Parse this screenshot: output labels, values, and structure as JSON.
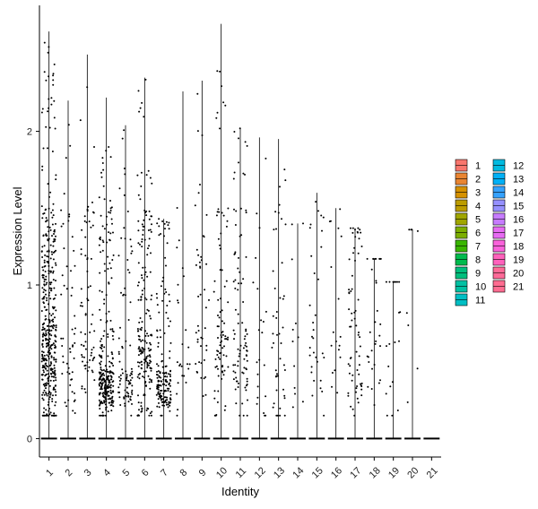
{
  "chart_data": {
    "type": "violin-jitter",
    "xlabel": "Identity",
    "ylabel": "Expression Level",
    "categories": [
      "1",
      "2",
      "3",
      "4",
      "5",
      "6",
      "7",
      "8",
      "9",
      "10",
      "11",
      "12",
      "13",
      "14",
      "15",
      "16",
      "17",
      "18",
      "19",
      "20",
      "21"
    ],
    "ylim": [
      -0.12,
      2.82
    ],
    "yticks": [
      0,
      1,
      2
    ],
    "grid": false,
    "legend_position": "right",
    "legend_columns": [
      [
        "1",
        "2",
        "3",
        "4",
        "5",
        "6",
        "7",
        "8",
        "9",
        "10",
        "11"
      ],
      [
        "12",
        "13",
        "14",
        "15",
        "16",
        "17",
        "18",
        "19",
        "20",
        "21"
      ]
    ],
    "max_values": [
      2.65,
      2.2,
      2.5,
      2.22,
      2.04,
      2.35,
      1.43,
      2.26,
      2.33,
      2.7,
      2.02,
      1.96,
      1.95,
      1.4,
      1.6,
      1.5,
      1.37,
      1.17,
      1.02,
      1.36,
      0.02
    ],
    "points_per_group": [
      420,
      55,
      70,
      280,
      85,
      200,
      170,
      25,
      45,
      85,
      90,
      22,
      45,
      12,
      32,
      18,
      65,
      30,
      20,
      8,
      0
    ],
    "colors": [
      "#F8766D",
      "#E98532",
      "#D69100",
      "#BC9C00",
      "#A0A600",
      "#7CAE00",
      "#39B600",
      "#00BB4E",
      "#00BF7D",
      "#00C1A3",
      "#00BFC4",
      "#00BAE0",
      "#00B0F6",
      "#35A2FF",
      "#9590FF",
      "#C77CFF",
      "#E76BF3",
      "#FA62DB",
      "#FF62BC",
      "#FF6A98",
      "#FF6C91"
    ]
  }
}
